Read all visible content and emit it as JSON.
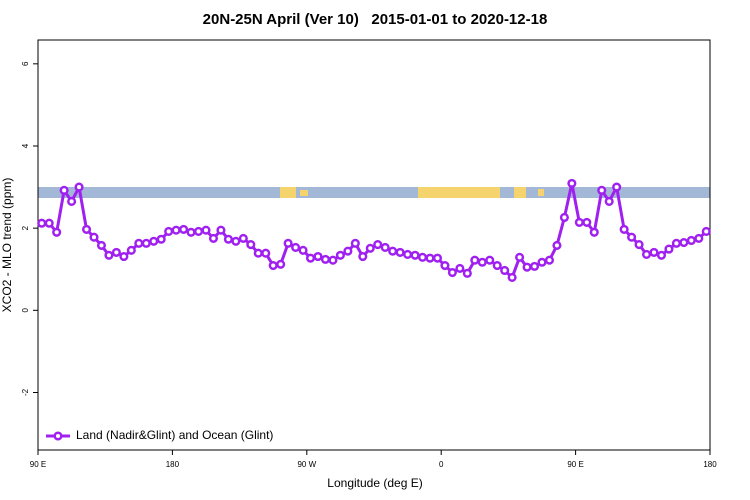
{
  "chart_data": {
    "type": "line",
    "title": "20N-25N April (Ver 10)   2015-01-01 to 2020-12-18",
    "x_label": "Longitude (deg E)",
    "y_label": "XCO2 - MLO trend (ppm)",
    "xlim": [
      90,
      540
    ],
    "xticks": [
      {
        "value": 90,
        "label": "90 E"
      },
      180,
      {
        "value": 270,
        "label": "90 W"
      },
      {
        "value": 360,
        "label": "0"
      },
      {
        "value": 450,
        "label": "90 E"
      },
      {
        "value": 540,
        "label": "180"
      }
    ],
    "ylim": [
      -3.4,
      6.58
    ],
    "yticks": [
      -2,
      0,
      2,
      4,
      6
    ],
    "legend": "bottomleft",
    "x": [
      92.5,
      97.5,
      102.5,
      107.5,
      112.5,
      117.5,
      122.5,
      127.5,
      132.5,
      137.5,
      142.5,
      147.5,
      152.5,
      157.5,
      162.5,
      167.5,
      172.5,
      177.5,
      182.5,
      187.5,
      192.5,
      197.5,
      202.5,
      207.5,
      212.5,
      217.5,
      222.5,
      227.5,
      232.5,
      237.5,
      242.5,
      247.5,
      252.5,
      257.5,
      262.5,
      267.5,
      272.5,
      277.5,
      282.5,
      287.5,
      292.5,
      297.5,
      302.5,
      307.5,
      312.5,
      317.5,
      322.5,
      327.5,
      332.5,
      337.5,
      342.5,
      347.5,
      352.5,
      357.5,
      362.5,
      367.5,
      372.5,
      377.5,
      382.5,
      387.5,
      392.5,
      397.5,
      402.5,
      407.5,
      412.5,
      417.5,
      422.5,
      427.5,
      432.5,
      437.5,
      442.5,
      447.5,
      452.5,
      457.5,
      462.5,
      467.5,
      472.5,
      477.5,
      482.5,
      487.5,
      492.5,
      497.5,
      502.5,
      507.5,
      512.5,
      517.5,
      522.5,
      527.5,
      532.5,
      537.5
    ],
    "series": [
      {
        "name": "Land (Nadir&Glint) and Ocean (Glint)",
        "color": "#a020f0",
        "values": [
          2.12,
          2.12,
          1.9,
          2.92,
          2.65,
          3.0,
          1.97,
          1.78,
          1.58,
          1.34,
          1.41,
          1.31,
          1.46,
          1.63,
          1.63,
          1.68,
          1.73,
          1.92,
          1.95,
          1.97,
          1.9,
          1.92,
          1.95,
          1.75,
          1.95,
          1.73,
          1.68,
          1.75,
          1.6,
          1.39,
          1.39,
          1.09,
          1.12,
          1.63,
          1.53,
          1.46,
          1.27,
          1.31,
          1.24,
          1.22,
          1.34,
          1.44,
          1.63,
          1.31,
          1.51,
          1.6,
          1.53,
          1.44,
          1.41,
          1.36,
          1.34,
          1.29,
          1.27,
          1.27,
          1.09,
          0.92,
          1.02,
          0.9,
          1.22,
          1.17,
          1.22,
          1.09,
          0.97,
          0.8,
          1.29,
          1.05,
          1.07,
          1.17,
          1.22,
          1.58,
          2.26,
          3.09,
          2.14,
          2.14,
          1.9,
          2.92,
          2.65,
          3.0,
          1.97,
          1.78,
          1.6,
          1.36,
          1.41,
          1.34,
          1.49,
          1.63,
          1.65,
          1.7,
          1.75,
          1.92
        ]
      }
    ]
  }
}
